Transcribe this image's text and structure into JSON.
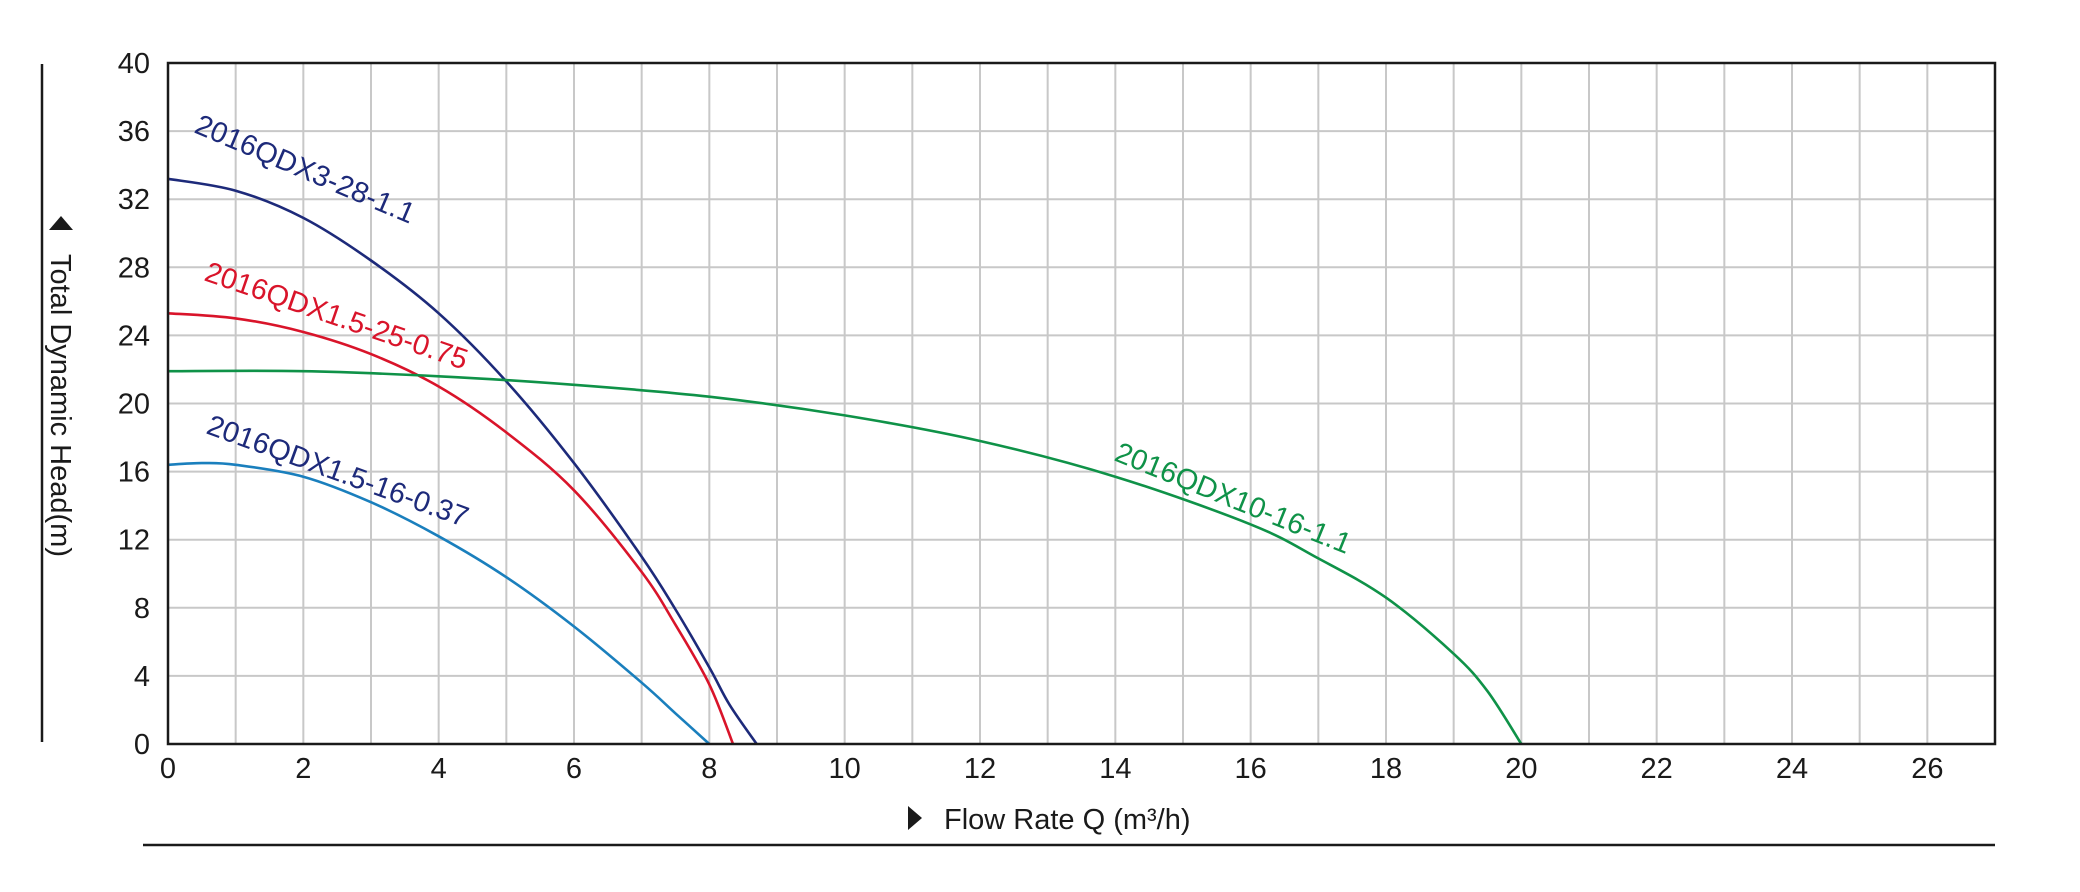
{
  "chart_data": {
    "type": "line",
    "xlabel": "Flow Rate Q (m³/h)",
    "ylabel": "Total Dynamic Head(m)",
    "xlim": [
      0,
      27
    ],
    "ylim": [
      0,
      40
    ],
    "x_ticks": [
      "0",
      "2",
      "4",
      "6",
      "8",
      "10",
      "12",
      "14",
      "16",
      "18",
      "20",
      "22",
      "24",
      "26"
    ],
    "y_ticks": [
      "0",
      "4",
      "8",
      "12",
      "16",
      "20",
      "24",
      "28",
      "32",
      "36",
      "40"
    ],
    "grid": true,
    "series": [
      {
        "name": "2016QDX3-28-1.1",
        "color": "#1d2a7a",
        "x": [
          0,
          1,
          2,
          3,
          4,
          5,
          6,
          7,
          7.5,
          8,
          8.3,
          8.7
        ],
        "y": [
          33.2,
          32.5,
          30.9,
          28.4,
          25.3,
          21.3,
          16.5,
          11.0,
          7.9,
          4.5,
          2.3,
          0
        ]
      },
      {
        "name": "2016QDX1.5-25-0.75",
        "color": "#d9142a",
        "x": [
          0,
          1,
          2,
          3,
          4,
          5,
          6,
          7,
          7.5,
          8,
          8.35
        ],
        "y": [
          25.3,
          25.0,
          24.2,
          22.9,
          21.0,
          18.3,
          14.9,
          10.1,
          7.0,
          3.5,
          0
        ]
      },
      {
        "name": "2016QDX10-16-1.1",
        "color": "#0f9248",
        "x": [
          0,
          2,
          4,
          6,
          8,
          10,
          12,
          14,
          16,
          17,
          18,
          19,
          19.5,
          20
        ],
        "y": [
          21.9,
          21.9,
          21.6,
          21.1,
          20.4,
          19.3,
          17.8,
          15.7,
          12.9,
          10.9,
          8.6,
          5.3,
          3.1,
          0
        ]
      },
      {
        "name": "2016QDX1.5-16-0.37",
        "color": "#1a7fbd",
        "x": [
          0,
          0.5,
          1,
          2,
          3,
          4,
          5,
          6,
          7,
          7.5,
          8
        ],
        "y": [
          16.4,
          16.5,
          16.4,
          15.7,
          14.2,
          12.2,
          9.8,
          6.9,
          3.6,
          1.8,
          0
        ]
      }
    ]
  }
}
